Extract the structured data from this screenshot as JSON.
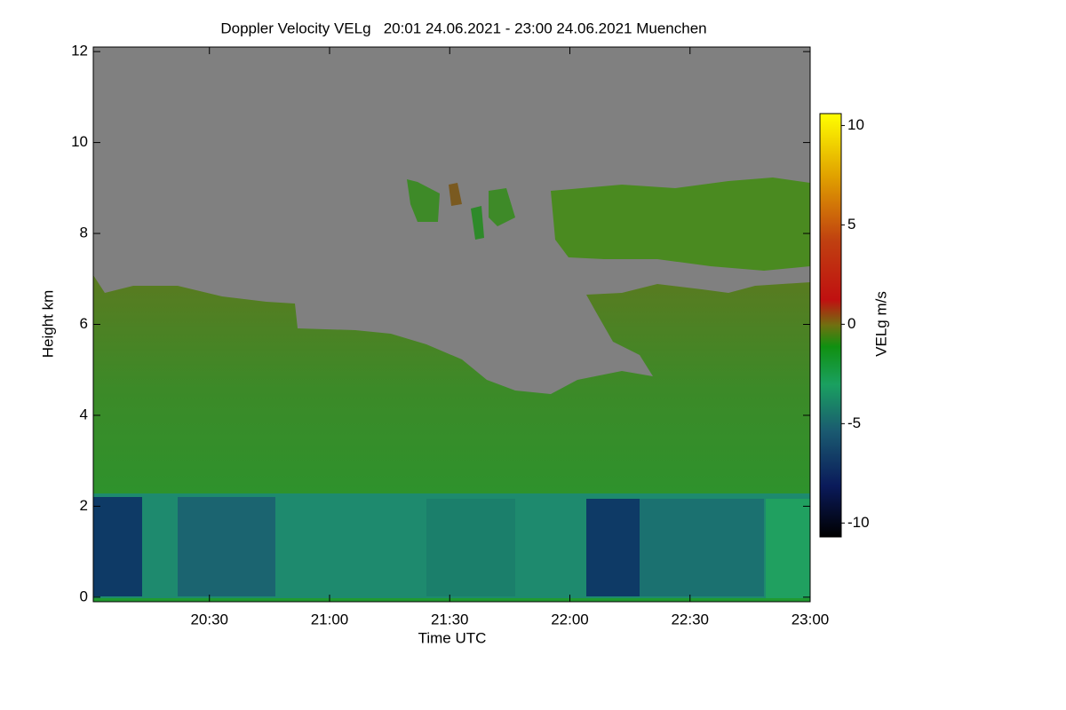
{
  "chart_data": {
    "type": "heatmap",
    "title": "Doppler Velocity VELg   20:01 24.06.2021 - 23:00 24.06.2021 Muenchen",
    "x_label": "Time UTC",
    "y_label": "Height km",
    "colorbar_label": "VELg m/s",
    "xlim": [
      1201,
      1380
    ],
    "xticks": [
      {
        "value": 1230,
        "label": "20:30"
      },
      {
        "value": 1260,
        "label": "21:00"
      },
      {
        "value": 1290,
        "label": "21:30"
      },
      {
        "value": 1320,
        "label": "22:00"
      },
      {
        "value": 1350,
        "label": "22:30"
      },
      {
        "value": 1380,
        "label": "23:00"
      }
    ],
    "ylim": [
      -0.1,
      12.1
    ],
    "yticks": [
      0,
      2,
      4,
      6,
      8,
      10,
      12
    ],
    "clim": [
      -10.7,
      10.6
    ],
    "cticks": [
      -10,
      -5,
      0,
      5,
      10
    ]
  }
}
